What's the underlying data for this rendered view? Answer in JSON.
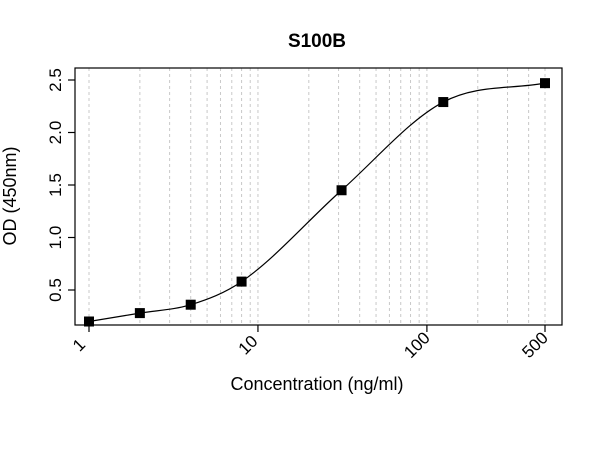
{
  "chart_data": {
    "type": "scatter",
    "title": "S100B",
    "xlabel": "Concentration (ng/ml)",
    "ylabel": "OD (450nm)",
    "x_scale": "log",
    "xlim": [
      1,
      500
    ],
    "ylim": [
      0.2,
      2.5
    ],
    "x_ticks": [
      1,
      10,
      100,
      500
    ],
    "x_tick_labels": [
      "1",
      "10",
      "100",
      "500"
    ],
    "y_ticks": [
      0.5,
      1.0,
      1.5,
      2.0,
      2.5
    ],
    "y_tick_labels": [
      "0.5",
      "1.0",
      "1.5",
      "2.0",
      "2.5"
    ],
    "grid": "vertical dashed at log minor ticks",
    "series": [
      {
        "marker": "square",
        "color": "#000000",
        "x": [
          1,
          2,
          4,
          8,
          31.25,
          125,
          500
        ],
        "y": [
          0.2,
          0.28,
          0.36,
          0.58,
          1.45,
          2.29,
          2.47
        ]
      }
    ],
    "fit": {
      "type": "4PL sigmoid curve",
      "color": "#000000"
    }
  }
}
